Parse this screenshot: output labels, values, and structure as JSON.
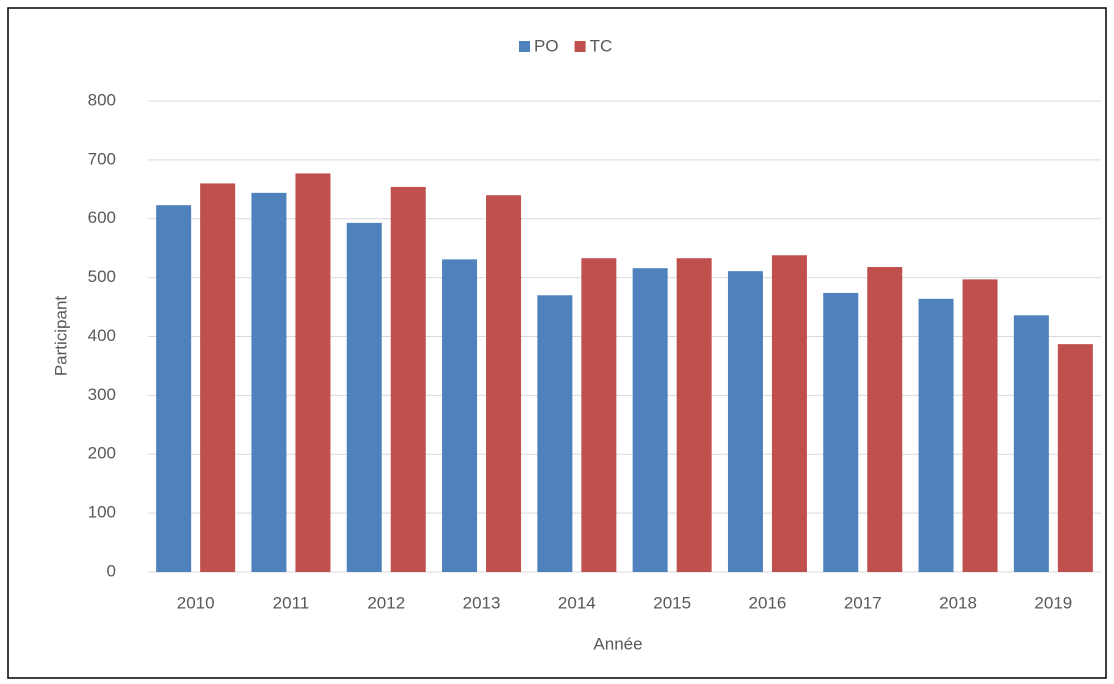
{
  "chart_data": {
    "type": "bar",
    "categories": [
      "2010",
      "2011",
      "2012",
      "2013",
      "2014",
      "2015",
      "2016",
      "2017",
      "2018",
      "2019"
    ],
    "series": [
      {
        "name": "PO",
        "color": "#4f81bd",
        "values": [
          623,
          644,
          593,
          531,
          470,
          516,
          511,
          474,
          464,
          436
        ]
      },
      {
        "name": "TC",
        "color": "#c0504d",
        "values": [
          660,
          677,
          654,
          640,
          533,
          533,
          538,
          518,
          497,
          387
        ]
      }
    ],
    "x_label": "Année",
    "y_label": "Participant",
    "ylim": [
      0,
      800
    ],
    "yticks": [
      0,
      100,
      200,
      300,
      400,
      500,
      600,
      700,
      800
    ],
    "grid": true,
    "legend": "top"
  }
}
